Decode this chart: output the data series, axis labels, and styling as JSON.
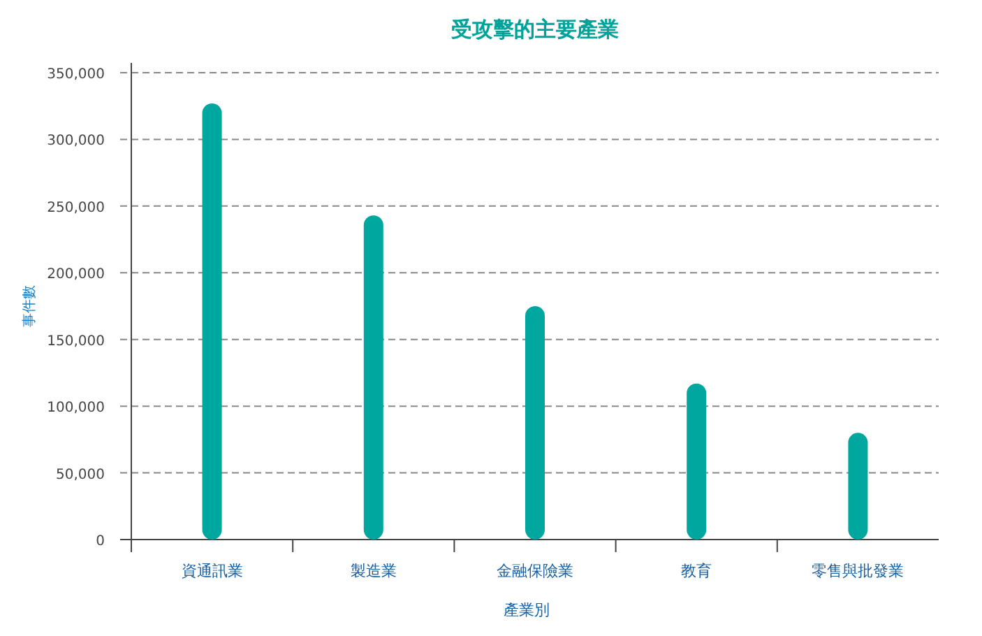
{
  "chart_data": {
    "type": "bar",
    "title": "受攻擊的主要產業",
    "xlabel": "產業別",
    "ylabel": "事件數",
    "categories": [
      "資通訊業",
      "製造業",
      "金融保險業",
      "教育",
      "零售與批發業"
    ],
    "values": [
      327000,
      243000,
      175000,
      117000,
      80000
    ],
    "color": "#00a79f",
    "ylim": [
      0,
      350000
    ],
    "yticks": [
      0,
      {
        "value": 50000,
        "label": "50,000"
      },
      {
        "value": 100000,
        "label": "100,000"
      },
      {
        "value": 150000,
        "label": "150,000"
      },
      {
        "value": 200000,
        "label": "200,000"
      },
      {
        "value": 250000,
        "label": "250,000"
      },
      {
        "value": 300000,
        "label": "300,000"
      },
      {
        "value": 350000,
        "label": "350,000"
      }
    ],
    "grid": "y"
  }
}
